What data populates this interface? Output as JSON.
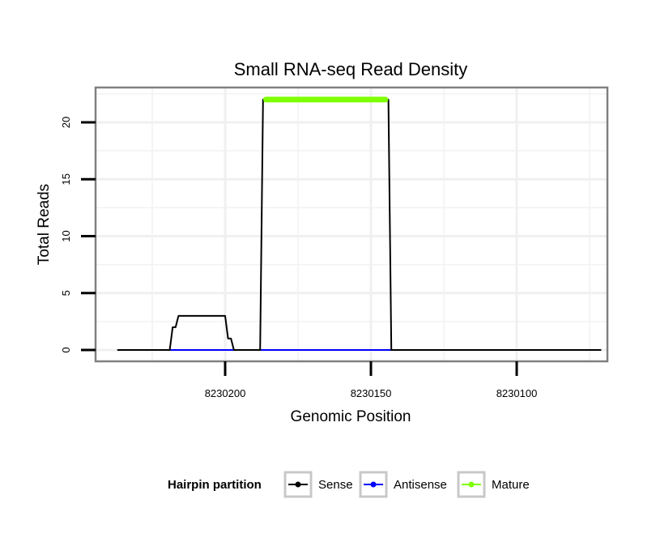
{
  "chart_data": {
    "type": "line",
    "title": "Small RNA-seq Read Density",
    "xlabel": "Genomic Position",
    "ylabel": "Total Reads",
    "x_reversed": true,
    "xlim": [
      8230245,
      8230068
    ],
    "ylim": [
      -1,
      23
    ],
    "x_ticks": [
      8230200,
      8230150,
      8230100
    ],
    "x_tick_labels": [
      "8230200",
      "8230150",
      "8230100"
    ],
    "y_ticks": [
      0,
      5,
      10,
      15,
      20
    ],
    "y_tick_labels": [
      "0",
      "5",
      "10",
      "15",
      "20"
    ],
    "grid": true,
    "legend": {
      "title": "Hairpin partition",
      "position": "bottom",
      "entries": [
        {
          "label": "Sense",
          "color": "#000000"
        },
        {
          "label": "Antisense",
          "color": "#0000ff"
        },
        {
          "label": "Mature",
          "color": "#7fff00"
        }
      ]
    },
    "series": [
      {
        "name": "Sense",
        "color": "#000000",
        "points": [
          [
            8230237,
            0
          ],
          [
            8230219,
            0
          ],
          [
            8230218,
            2
          ],
          [
            8230217,
            2
          ],
          [
            8230216,
            3
          ],
          [
            8230200,
            3
          ],
          [
            8230199,
            1
          ],
          [
            8230198,
            1
          ],
          [
            8230197,
            0
          ],
          [
            8230188,
            0
          ],
          [
            8230187,
            22
          ],
          [
            8230144,
            22
          ],
          [
            8230143,
            0
          ],
          [
            8230071,
            0
          ]
        ]
      },
      {
        "name": "Antisense",
        "color": "#0000ff",
        "points": [
          [
            8230219,
            0
          ],
          [
            8230143,
            0
          ]
        ]
      },
      {
        "name": "Mature",
        "color": "#7fff00",
        "points": [
          [
            8230186,
            22
          ],
          [
            8230145,
            22
          ]
        ]
      }
    ]
  }
}
